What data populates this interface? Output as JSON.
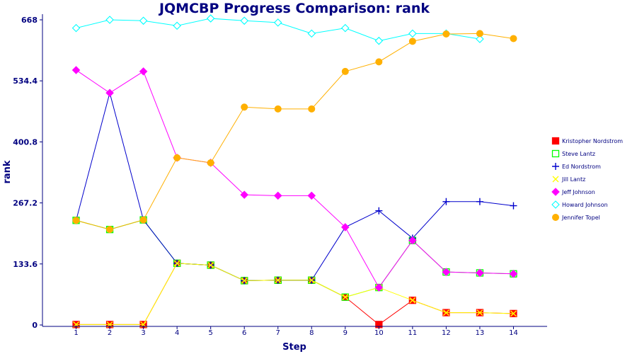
{
  "chart_data": {
    "type": "line",
    "title": "JQMCBP Progress Comparison: rank",
    "xlabel": "Step",
    "ylabel": "rank",
    "x": [
      1,
      2,
      3,
      4,
      5,
      6,
      7,
      8,
      9,
      10,
      11,
      12,
      13,
      14
    ],
    "xlim": [
      0,
      15
    ],
    "ylim": [
      0,
      668
    ],
    "yticks": [
      "0",
      "133.6",
      "267.2",
      "400.8",
      "534.4",
      "668"
    ],
    "grid": false,
    "legend_position": "right",
    "series": [
      {
        "name": "Kristopher Nordstrom",
        "color": "#ff0000",
        "marker": "square",
        "values": [
          1,
          1,
          1,
          135,
          131,
          97,
          98,
          98,
          61,
          1,
          54,
          27,
          27,
          25
        ]
      },
      {
        "name": "Steve Lantz",
        "color": "#00ff00",
        "marker": "square-open",
        "values": [
          229,
          209,
          230,
          135,
          131,
          97,
          98,
          98,
          61,
          82,
          185,
          116,
          114,
          112
        ]
      },
      {
        "name": "Ed Nordstrom",
        "color": "#0000cc",
        "marker": "plus",
        "values": [
          229,
          508,
          230,
          135,
          131,
          97,
          98,
          98,
          214,
          250,
          190,
          270,
          270,
          261
        ]
      },
      {
        "name": "Jill Lantz",
        "color": "#ffff00",
        "marker": "triangle",
        "values": [
          1,
          1,
          1,
          135,
          131,
          97,
          98,
          98,
          61,
          82,
          54,
          27,
          27,
          25
        ]
      },
      {
        "name": "Jeff Johnson",
        "color": "#ff00ff",
        "marker": "diamond",
        "values": [
          558,
          508,
          555,
          366,
          355,
          285,
          283,
          283,
          214,
          82,
          185,
          116,
          114,
          112
        ]
      },
      {
        "name": "Howard Johnson",
        "color": "#00ffff",
        "marker": "diamond-open",
        "values": [
          650,
          668,
          666,
          655,
          671,
          666,
          662,
          638,
          650,
          622,
          638,
          638,
          626,
          null
        ]
      },
      {
        "name": "Jennifer Topel",
        "color": "#ffb000",
        "marker": "circle",
        "values": [
          229,
          209,
          230,
          366,
          355,
          477,
          473,
          473,
          555,
          576,
          621,
          637,
          638,
          627
        ]
      }
    ]
  }
}
